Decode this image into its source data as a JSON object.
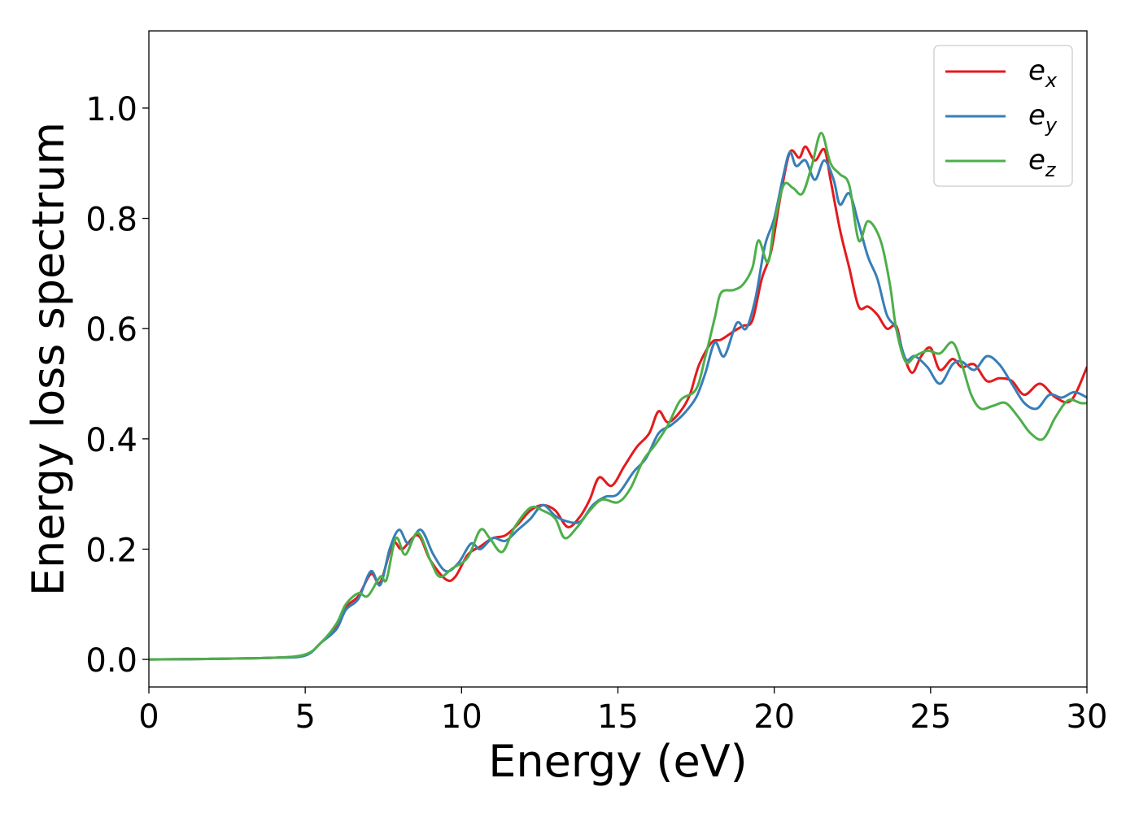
{
  "chart_data": {
    "type": "line",
    "title": "",
    "xlabel": "Energy (eV)",
    "ylabel": "Energy loss spectrum",
    "xlim": [
      0,
      30
    ],
    "ylim": [
      -0.05,
      1.14
    ],
    "x_ticks": [
      0,
      5,
      10,
      15,
      20,
      25,
      30
    ],
    "x_tick_labels": [
      "0",
      "5",
      "10",
      "15",
      "20",
      "25",
      "30"
    ],
    "y_ticks": [
      0.0,
      0.2,
      0.4,
      0.6,
      0.8,
      1.0
    ],
    "y_tick_labels": [
      "0.0",
      "0.2",
      "0.4",
      "0.6",
      "0.8",
      "1.0"
    ],
    "grid": false,
    "legend_position": "top-right",
    "series": [
      {
        "name": "e",
        "subscript": "x",
        "color": "#e41a1c",
        "points": [
          [
            0,
            0
          ],
          [
            2,
            0.001
          ],
          [
            4,
            0.003
          ],
          [
            5,
            0.008
          ],
          [
            5.5,
            0.03
          ],
          [
            6,
            0.06
          ],
          [
            6.3,
            0.095
          ],
          [
            6.7,
            0.115
          ],
          [
            7.1,
            0.155
          ],
          [
            7.4,
            0.14
          ],
          [
            7.8,
            0.21
          ],
          [
            8.1,
            0.2
          ],
          [
            8.6,
            0.225
          ],
          [
            9.0,
            0.18
          ],
          [
            9.5,
            0.145
          ],
          [
            9.8,
            0.15
          ],
          [
            10.2,
            0.19
          ],
          [
            10.6,
            0.205
          ],
          [
            11.0,
            0.22
          ],
          [
            11.4,
            0.225
          ],
          [
            11.8,
            0.245
          ],
          [
            12.2,
            0.27
          ],
          [
            12.6,
            0.28
          ],
          [
            13.0,
            0.27
          ],
          [
            13.4,
            0.24
          ],
          [
            13.8,
            0.26
          ],
          [
            14.1,
            0.29
          ],
          [
            14.4,
            0.33
          ],
          [
            14.8,
            0.315
          ],
          [
            15.2,
            0.35
          ],
          [
            15.6,
            0.385
          ],
          [
            16.0,
            0.41
          ],
          [
            16.3,
            0.45
          ],
          [
            16.6,
            0.43
          ],
          [
            17.0,
            0.45
          ],
          [
            17.3,
            0.48
          ],
          [
            17.6,
            0.535
          ],
          [
            18.0,
            0.575
          ],
          [
            18.3,
            0.58
          ],
          [
            18.7,
            0.595
          ],
          [
            19.0,
            0.605
          ],
          [
            19.3,
            0.615
          ],
          [
            19.6,
            0.69
          ],
          [
            19.9,
            0.74
          ],
          [
            20.2,
            0.84
          ],
          [
            20.5,
            0.92
          ],
          [
            20.8,
            0.91
          ],
          [
            21.0,
            0.93
          ],
          [
            21.3,
            0.905
          ],
          [
            21.6,
            0.925
          ],
          [
            21.8,
            0.87
          ],
          [
            22.1,
            0.78
          ],
          [
            22.4,
            0.71
          ],
          [
            22.7,
            0.64
          ],
          [
            23.0,
            0.64
          ],
          [
            23.3,
            0.625
          ],
          [
            23.6,
            0.6
          ],
          [
            23.9,
            0.605
          ],
          [
            24.1,
            0.56
          ],
          [
            24.4,
            0.52
          ],
          [
            24.7,
            0.55
          ],
          [
            25.0,
            0.565
          ],
          [
            25.3,
            0.525
          ],
          [
            25.7,
            0.545
          ],
          [
            26.0,
            0.53
          ],
          [
            26.4,
            0.535
          ],
          [
            26.8,
            0.505
          ],
          [
            27.2,
            0.51
          ],
          [
            27.6,
            0.505
          ],
          [
            28.0,
            0.48
          ],
          [
            28.5,
            0.5
          ],
          [
            29.0,
            0.475
          ],
          [
            29.5,
            0.47
          ],
          [
            30.0,
            0.53
          ]
        ]
      },
      {
        "name": "e",
        "subscript": "y",
        "color": "#377eb8",
        "points": [
          [
            0,
            0
          ],
          [
            2,
            0.001
          ],
          [
            4,
            0.003
          ],
          [
            5,
            0.007
          ],
          [
            5.5,
            0.03
          ],
          [
            6,
            0.055
          ],
          [
            6.3,
            0.09
          ],
          [
            6.7,
            0.11
          ],
          [
            7.1,
            0.16
          ],
          [
            7.4,
            0.135
          ],
          [
            7.7,
            0.2
          ],
          [
            8.0,
            0.235
          ],
          [
            8.3,
            0.21
          ],
          [
            8.7,
            0.235
          ],
          [
            9.1,
            0.19
          ],
          [
            9.5,
            0.16
          ],
          [
            9.9,
            0.175
          ],
          [
            10.3,
            0.21
          ],
          [
            10.6,
            0.2
          ],
          [
            11.0,
            0.22
          ],
          [
            11.4,
            0.215
          ],
          [
            11.8,
            0.235
          ],
          [
            12.2,
            0.255
          ],
          [
            12.6,
            0.28
          ],
          [
            13.0,
            0.26
          ],
          [
            13.4,
            0.25
          ],
          [
            13.8,
            0.25
          ],
          [
            14.2,
            0.28
          ],
          [
            14.6,
            0.295
          ],
          [
            15.0,
            0.3
          ],
          [
            15.5,
            0.34
          ],
          [
            15.9,
            0.365
          ],
          [
            16.3,
            0.41
          ],
          [
            16.7,
            0.425
          ],
          [
            17.1,
            0.445
          ],
          [
            17.5,
            0.475
          ],
          [
            17.8,
            0.52
          ],
          [
            18.1,
            0.575
          ],
          [
            18.4,
            0.55
          ],
          [
            18.8,
            0.61
          ],
          [
            19.1,
            0.6
          ],
          [
            19.4,
            0.655
          ],
          [
            19.7,
            0.75
          ],
          [
            20.0,
            0.8
          ],
          [
            20.3,
            0.88
          ],
          [
            20.5,
            0.92
          ],
          [
            20.7,
            0.895
          ],
          [
            21.0,
            0.905
          ],
          [
            21.3,
            0.87
          ],
          [
            21.6,
            0.905
          ],
          [
            21.9,
            0.87
          ],
          [
            22.1,
            0.825
          ],
          [
            22.4,
            0.845
          ],
          [
            22.7,
            0.79
          ],
          [
            23.0,
            0.73
          ],
          [
            23.3,
            0.69
          ],
          [
            23.6,
            0.625
          ],
          [
            23.9,
            0.6
          ],
          [
            24.2,
            0.545
          ],
          [
            24.5,
            0.55
          ],
          [
            24.9,
            0.53
          ],
          [
            25.3,
            0.5
          ],
          [
            25.7,
            0.535
          ],
          [
            26.0,
            0.54
          ],
          [
            26.4,
            0.525
          ],
          [
            26.8,
            0.55
          ],
          [
            27.2,
            0.535
          ],
          [
            27.6,
            0.5
          ],
          [
            28.0,
            0.465
          ],
          [
            28.4,
            0.455
          ],
          [
            28.8,
            0.48
          ],
          [
            29.2,
            0.475
          ],
          [
            29.6,
            0.485
          ],
          [
            30.0,
            0.475
          ]
        ]
      },
      {
        "name": "e",
        "subscript": "z",
        "color": "#4daf4a",
        "points": [
          [
            0,
            0
          ],
          [
            2,
            0.001
          ],
          [
            4,
            0.003
          ],
          [
            5,
            0.009
          ],
          [
            5.5,
            0.03
          ],
          [
            6,
            0.065
          ],
          [
            6.3,
            0.1
          ],
          [
            6.7,
            0.12
          ],
          [
            7.0,
            0.115
          ],
          [
            7.4,
            0.15
          ],
          [
            7.6,
            0.145
          ],
          [
            7.9,
            0.22
          ],
          [
            8.2,
            0.19
          ],
          [
            8.6,
            0.23
          ],
          [
            9.0,
            0.18
          ],
          [
            9.3,
            0.15
          ],
          [
            9.7,
            0.165
          ],
          [
            10.2,
            0.185
          ],
          [
            10.6,
            0.235
          ],
          [
            10.9,
            0.22
          ],
          [
            11.3,
            0.195
          ],
          [
            11.7,
            0.24
          ],
          [
            12.2,
            0.275
          ],
          [
            12.6,
            0.27
          ],
          [
            13.0,
            0.255
          ],
          [
            13.3,
            0.22
          ],
          [
            13.7,
            0.24
          ],
          [
            14.1,
            0.27
          ],
          [
            14.5,
            0.29
          ],
          [
            15.0,
            0.285
          ],
          [
            15.4,
            0.31
          ],
          [
            15.8,
            0.36
          ],
          [
            16.2,
            0.39
          ],
          [
            16.6,
            0.425
          ],
          [
            17.0,
            0.47
          ],
          [
            17.5,
            0.49
          ],
          [
            17.8,
            0.55
          ],
          [
            18.1,
            0.62
          ],
          [
            18.3,
            0.665
          ],
          [
            18.7,
            0.67
          ],
          [
            19.0,
            0.68
          ],
          [
            19.3,
            0.71
          ],
          [
            19.5,
            0.76
          ],
          [
            19.8,
            0.72
          ],
          [
            20.0,
            0.79
          ],
          [
            20.3,
            0.86
          ],
          [
            20.6,
            0.855
          ],
          [
            20.9,
            0.845
          ],
          [
            21.2,
            0.895
          ],
          [
            21.5,
            0.955
          ],
          [
            21.8,
            0.9
          ],
          [
            22.1,
            0.88
          ],
          [
            22.4,
            0.86
          ],
          [
            22.7,
            0.76
          ],
          [
            23.0,
            0.795
          ],
          [
            23.4,
            0.76
          ],
          [
            23.7,
            0.68
          ],
          [
            23.9,
            0.6
          ],
          [
            24.2,
            0.54
          ],
          [
            24.5,
            0.55
          ],
          [
            24.9,
            0.56
          ],
          [
            25.3,
            0.555
          ],
          [
            25.7,
            0.575
          ],
          [
            26.0,
            0.535
          ],
          [
            26.3,
            0.48
          ],
          [
            26.6,
            0.455
          ],
          [
            27.0,
            0.46
          ],
          [
            27.4,
            0.465
          ],
          [
            27.8,
            0.44
          ],
          [
            28.2,
            0.41
          ],
          [
            28.6,
            0.4
          ],
          [
            29.0,
            0.44
          ],
          [
            29.4,
            0.47
          ],
          [
            29.8,
            0.465
          ],
          [
            30.0,
            0.465
          ]
        ]
      }
    ]
  }
}
